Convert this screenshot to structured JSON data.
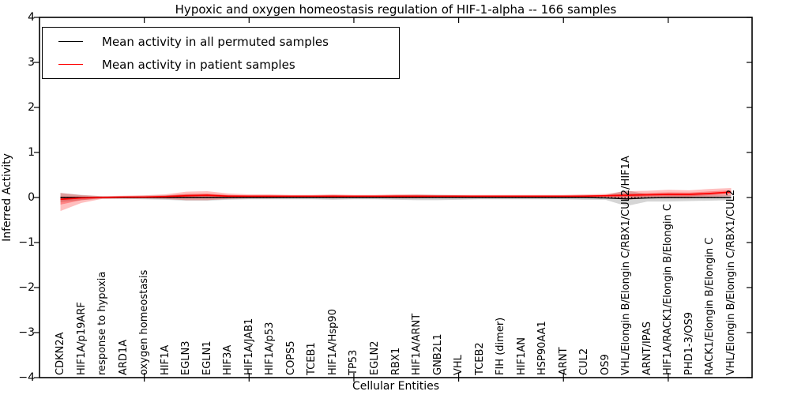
{
  "chart_data": {
    "type": "line",
    "title": "Hypoxic and oxygen homeostasis regulation of HIF-1-alpha -- 166 samples",
    "xlabel": "Cellular Entities",
    "ylabel": "Inferred Activity",
    "ylim": [
      -4,
      4
    ],
    "y_ticks": [
      4,
      3,
      2,
      1,
      0,
      -1,
      -2,
      -3,
      -4
    ],
    "x_axis_range": [
      0,
      34
    ],
    "x_major_ticks": [
      5,
      10,
      15,
      20,
      25,
      30
    ],
    "grid": false,
    "legend_position": "upper-left",
    "zero_line": {
      "style": "dotted",
      "color": "#000000",
      "value": 0
    },
    "categories": [
      "CDKN2A",
      "HIF1A/p19ARF",
      "response to hypoxia",
      "ARD1A",
      "oxygen homeostasis",
      "HIF1A",
      "EGLN3",
      "EGLN1",
      "HIF3A",
      "HIF1A/JAB1",
      "HIF1A/p53",
      "COPS5",
      "TCEB1",
      "HIF1A/Hsp90",
      "TP53",
      "EGLN2",
      "RBX1",
      "HIF1A/ARNT",
      "GNB2L1",
      "VHL",
      "TCEB2",
      "FIH (dimer)",
      "HIF1AN",
      "HSP90AA1",
      "ARNT",
      "CUL2",
      "OS9",
      "VHL/Elongin B/Elongin C/RBX1/CUL2/HIF1A",
      "ARNT/IPAS",
      "HIF1A/RACK1/Elongin B/Elongin C",
      "PHD1-3/OS9",
      "RACK1/Elongin B/Elongin C",
      "VHL/Elongin B/Elongin C/RBX1/CUL2"
    ],
    "series": [
      {
        "name": "Mean activity in all permuted samples",
        "color": "#000000",
        "band_color": "#888888",
        "values": [
          0.0,
          0.0,
          0.0,
          0.0,
          0.0,
          0.0,
          0.0,
          0.0,
          0.0,
          0.0,
          0.0,
          0.0,
          0.0,
          0.0,
          0.0,
          0.0,
          0.0,
          0.0,
          0.0,
          0.0,
          0.0,
          0.0,
          0.0,
          0.0,
          0.0,
          0.0,
          -0.01,
          -0.03,
          -0.01,
          0.0,
          0.0,
          0.0,
          0.0
        ],
        "band_upper": [
          0.1,
          0.06,
          0.03,
          0.03,
          0.04,
          0.05,
          0.07,
          0.07,
          0.05,
          0.04,
          0.04,
          0.04,
          0.04,
          0.05,
          0.04,
          0.04,
          0.05,
          0.06,
          0.06,
          0.05,
          0.04,
          0.04,
          0.04,
          0.04,
          0.04,
          0.05,
          0.05,
          0.16,
          0.07,
          0.09,
          0.08,
          0.07,
          0.06
        ],
        "band_lower": [
          -0.1,
          -0.06,
          -0.03,
          -0.03,
          -0.04,
          -0.05,
          -0.07,
          -0.07,
          -0.05,
          -0.04,
          -0.04,
          -0.04,
          -0.04,
          -0.05,
          -0.04,
          -0.04,
          -0.05,
          -0.06,
          -0.06,
          -0.05,
          -0.04,
          -0.04,
          -0.04,
          -0.04,
          -0.04,
          -0.05,
          -0.05,
          -0.19,
          -0.09,
          -0.09,
          -0.08,
          -0.07,
          -0.06
        ]
      },
      {
        "name": "Mean activity in patient samples",
        "color": "#ff0000",
        "band_color": "#ff0000",
        "values": [
          -0.04,
          -0.01,
          0.0,
          0.01,
          0.01,
          0.02,
          0.04,
          0.05,
          0.03,
          0.03,
          0.03,
          0.03,
          0.03,
          0.03,
          0.03,
          0.03,
          0.03,
          0.03,
          0.03,
          0.03,
          0.03,
          0.03,
          0.03,
          0.03,
          0.03,
          0.03,
          0.04,
          0.05,
          0.06,
          0.07,
          0.07,
          0.09,
          0.12
        ],
        "band_upper": [
          0.1,
          0.05,
          0.03,
          0.04,
          0.05,
          0.07,
          0.13,
          0.14,
          0.09,
          0.07,
          0.07,
          0.06,
          0.06,
          0.07,
          0.06,
          0.06,
          0.07,
          0.07,
          0.06,
          0.06,
          0.06,
          0.06,
          0.06,
          0.06,
          0.06,
          0.07,
          0.08,
          0.14,
          0.15,
          0.17,
          0.16,
          0.19,
          0.21
        ],
        "band_lower": [
          -0.3,
          -0.12,
          -0.03,
          -0.02,
          -0.02,
          -0.03,
          -0.06,
          -0.06,
          -0.03,
          -0.02,
          -0.02,
          -0.01,
          -0.01,
          -0.02,
          -0.01,
          -0.01,
          -0.02,
          -0.02,
          -0.01,
          -0.01,
          -0.01,
          -0.01,
          -0.01,
          -0.01,
          -0.01,
          -0.01,
          -0.01,
          -0.05,
          -0.02,
          -0.02,
          -0.02,
          0.01,
          0.03
        ]
      }
    ]
  }
}
